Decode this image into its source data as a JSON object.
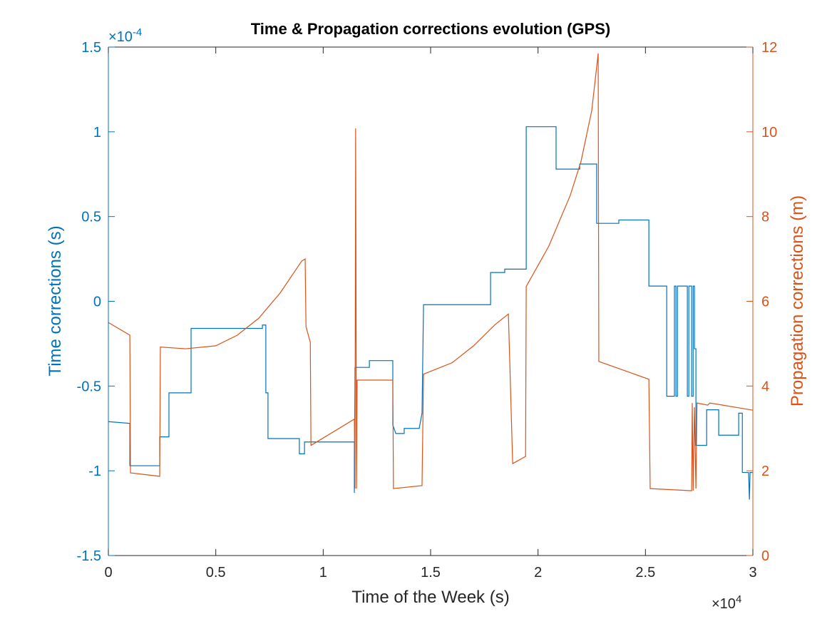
{
  "chart_data": {
    "type": "line",
    "title": "Time & Propagation corrections evolution (GPS)",
    "x_label": "Time of the Week (s)",
    "y_label": "Time corrections (s)",
    "y2_label": "Propagation corrections (m)",
    "x_multiplier": {
      "base": "×10",
      "exponent": "4"
    },
    "y_multiplier": {
      "base": "×10",
      "exponent": "-4"
    },
    "xlim": [
      0,
      3
    ],
    "xticks": [
      0,
      0.5,
      1,
      1.5,
      2,
      2.5,
      3
    ],
    "ylim": [
      -1.5,
      1.5
    ],
    "yticks": [
      -1.5,
      -1,
      -0.5,
      0,
      0.5,
      1,
      1.5
    ],
    "y2lim": [
      0,
      12
    ],
    "y2ticks": [
      0,
      2,
      4,
      6,
      8,
      10,
      12
    ],
    "grid": false,
    "series": [
      {
        "color": "#0072BD",
        "axis": "y",
        "x": [
          0,
          0.1,
          0.1,
          0.239,
          0.239,
          0.282,
          0.282,
          0.385,
          0.385,
          0.717,
          0.717,
          0.733,
          0.733,
          0.743,
          0.743,
          0.889,
          0.889,
          0.913,
          0.913,
          1.145,
          1.145,
          1.148,
          1.215,
          1.215,
          1.324,
          1.324,
          1.338,
          1.377,
          1.377,
          1.447,
          1.46,
          1.467,
          1.779,
          1.779,
          1.845,
          1.845,
          1.945,
          1.945,
          2.084,
          2.084,
          2.194,
          2.194,
          2.273,
          2.273,
          2.376,
          2.376,
          2.516,
          2.516,
          2.599,
          2.599,
          2.635,
          2.635,
          2.642,
          2.642,
          2.649,
          2.649,
          2.695,
          2.695,
          2.702,
          2.702,
          2.715,
          2.715,
          2.722,
          2.722,
          2.728,
          2.728,
          2.735,
          2.735,
          2.785,
          2.785,
          2.841,
          2.841,
          2.934,
          2.934,
          2.951,
          2.951,
          2.98,
          2.984,
          2.987,
          3.0
        ],
        "values": [
          -0.71,
          -0.72,
          -0.97,
          -0.97,
          -0.8,
          -0.8,
          -0.54,
          -0.54,
          -0.16,
          -0.16,
          -0.14,
          -0.14,
          -0.54,
          -0.54,
          -0.81,
          -0.81,
          -0.9,
          -0.9,
          -0.83,
          -0.83,
          -1.13,
          -0.39,
          -0.39,
          -0.35,
          -0.35,
          -0.73,
          -0.78,
          -0.78,
          -0.75,
          -0.75,
          -0.66,
          -0.02,
          -0.02,
          0.17,
          0.17,
          0.19,
          0.19,
          1.03,
          1.03,
          0.78,
          0.78,
          0.81,
          0.81,
          0.46,
          0.46,
          0.48,
          0.48,
          0.09,
          0.09,
          -0.56,
          -0.56,
          0.09,
          0.09,
          -0.56,
          -0.56,
          0.09,
          0.09,
          -0.56,
          -0.56,
          0.09,
          0.09,
          -0.56,
          -0.56,
          0.09,
          0.09,
          -0.28,
          -0.28,
          -0.85,
          -0.85,
          -0.64,
          -0.64,
          -0.79,
          -0.79,
          -0.66,
          -0.66,
          -1.01,
          -1.01,
          -1.17,
          -1.01,
          -1.01
        ]
      },
      {
        "color": "#D95319",
        "axis": "y2",
        "x": [
          0,
          0.1,
          0.103,
          0.239,
          0.242,
          0.36,
          0.5,
          0.6,
          0.7,
          0.8,
          0.9,
          0.916,
          0.92,
          0.94,
          0.943,
          1.145,
          1.148,
          1.151,
          1.155,
          1.158,
          1.324,
          1.327,
          1.46,
          1.467,
          1.6,
          1.7,
          1.8,
          1.862,
          1.882,
          1.942,
          1.945,
          2.05,
          2.15,
          2.2,
          2.25,
          2.28,
          2.283,
          2.516,
          2.522,
          2.715,
          2.718,
          2.722,
          2.728,
          2.735,
          2.74,
          2.79,
          2.8,
          3.0
        ],
        "values": [
          5.5,
          5.2,
          1.95,
          1.87,
          4.92,
          4.88,
          4.95,
          5.2,
          5.6,
          6.2,
          6.95,
          7.0,
          5.4,
          5.03,
          2.6,
          3.22,
          1.58,
          10.08,
          1.58,
          4.14,
          4.14,
          1.58,
          1.65,
          4.28,
          4.55,
          4.95,
          5.45,
          5.7,
          2.17,
          2.34,
          6.35,
          7.3,
          8.5,
          9.3,
          10.5,
          11.85,
          4.58,
          4.16,
          1.58,
          1.53,
          3.6,
          1.53,
          3.5,
          1.58,
          3.6,
          3.55,
          3.6,
          3.43
        ]
      }
    ]
  }
}
